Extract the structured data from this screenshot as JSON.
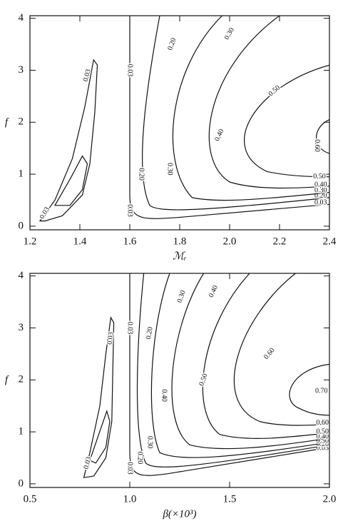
{
  "chart_data": [
    {
      "type": "contour",
      "xlabel": "ℳᵣ",
      "ylabel": "f",
      "xlim": [
        1.2,
        2.4
      ],
      "ylim": [
        -0.07,
        4.05
      ],
      "xticks": [
        1.2,
        1.4,
        1.6,
        1.8,
        {
          "value": 2.0,
          "label": "2.0"
        },
        2.2,
        2.4
      ],
      "yticks": [
        0,
        1,
        2,
        3,
        4
      ],
      "levels": [
        0.03,
        0.03,
        0.03,
        0.2,
        0.3,
        0.4,
        0.5,
        0.6
      ],
      "level_labels": [
        "0.03",
        "0.03",
        "0.03",
        "0.20",
        "0.30",
        "0.40",
        "0.50",
        "0.60"
      ]
    },
    {
      "type": "contour",
      "xlabel": "β(×10³)",
      "ylabel": "f",
      "xlim": [
        0.5,
        2.0
      ],
      "ylim": [
        -0.07,
        4.05
      ],
      "xticks": [
        0.5,
        {
          "value": 1.0,
          "label": "1.0"
        },
        1.5,
        {
          "value": 2.0,
          "label": "2.0"
        }
      ],
      "yticks": [
        0,
        1,
        2,
        3,
        4
      ],
      "levels": [
        0.03,
        0.03,
        0.03,
        0.2,
        0.3,
        0.4,
        0.5,
        0.6,
        0.7
      ],
      "level_labels": [
        "0.03",
        "0.03",
        "0.03",
        "0.20",
        "0.30",
        "0.40",
        "0.50",
        "0.60",
        "0.70"
      ]
    }
  ]
}
